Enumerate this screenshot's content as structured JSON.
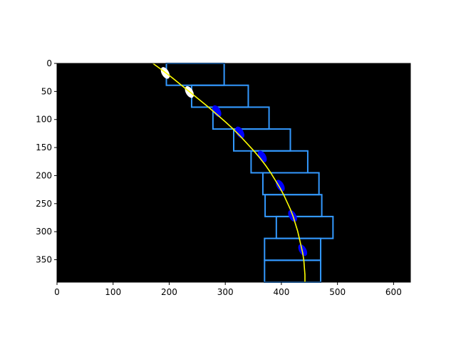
{
  "chart_data": {
    "type": "image-plot",
    "title": "",
    "xlabel": "",
    "ylabel": "",
    "xlim": [
      0,
      630
    ],
    "ylim": [
      390,
      0
    ],
    "y_inverted": true,
    "x_ticks": [
      0,
      100,
      200,
      300,
      400,
      500,
      600
    ],
    "y_ticks": [
      0,
      50,
      100,
      150,
      200,
      250,
      300,
      350
    ],
    "background_color": "#000000",
    "window_color": "#3399ff",
    "window_height": 39,
    "windows": [
      {
        "x1": 195,
        "x2": 298,
        "y1": 0,
        "y2": 39
      },
      {
        "x1": 240,
        "x2": 341,
        "y1": 39,
        "y2": 78
      },
      {
        "x1": 278,
        "x2": 378,
        "y1": 78,
        "y2": 117
      },
      {
        "x1": 315,
        "x2": 416,
        "y1": 117,
        "y2": 156
      },
      {
        "x1": 346,
        "x2": 447,
        "y1": 156,
        "y2": 195
      },
      {
        "x1": 367,
        "x2": 467,
        "y1": 195,
        "y2": 234
      },
      {
        "x1": 371,
        "x2": 472,
        "y1": 234,
        "y2": 273
      },
      {
        "x1": 391,
        "x2": 492,
        "y1": 273,
        "y2": 312
      },
      {
        "x1": 370,
        "x2": 470,
        "y1": 312,
        "y2": 351
      },
      {
        "x1": 370,
        "x2": 470,
        "y1": 351,
        "y2": 390
      }
    ],
    "pixel_blobs": [
      {
        "x": 193,
        "y": 17,
        "color": "#ffffff"
      },
      {
        "x": 236,
        "y": 51,
        "color": "#ffffff"
      },
      {
        "x": 285,
        "y": 85,
        "color": "#0000ff"
      },
      {
        "x": 326,
        "y": 123,
        "color": "#0000ff"
      },
      {
        "x": 366,
        "y": 166,
        "color": "#0000ff"
      },
      {
        "x": 398,
        "y": 218,
        "color": "#0000ff"
      },
      {
        "x": 420,
        "y": 272,
        "color": "#0000ff"
      },
      {
        "x": 438,
        "y": 333,
        "color": "#0000ff"
      }
    ],
    "fit_line": {
      "color": "#ffff00",
      "points": [
        [
          171,
          0
        ],
        [
          189,
          13
        ],
        [
          206,
          26
        ],
        [
          222,
          39
        ],
        [
          238,
          52
        ],
        [
          254,
          65
        ],
        [
          270,
          78
        ],
        [
          285,
          91
        ],
        [
          300,
          104
        ],
        [
          314,
          117
        ],
        [
          327,
          130
        ],
        [
          339,
          143
        ],
        [
          351,
          156
        ],
        [
          362,
          169
        ],
        [
          372,
          182
        ],
        [
          381,
          195
        ],
        [
          389,
          208
        ],
        [
          397,
          221
        ],
        [
          404,
          234
        ],
        [
          410,
          247
        ],
        [
          416,
          260
        ],
        [
          421,
          273
        ],
        [
          425,
          286
        ],
        [
          429,
          299
        ],
        [
          432,
          312
        ],
        [
          435,
          325
        ],
        [
          438,
          338
        ],
        [
          440,
          351
        ],
        [
          441,
          364
        ],
        [
          442,
          377
        ],
        [
          442,
          390
        ]
      ]
    }
  }
}
